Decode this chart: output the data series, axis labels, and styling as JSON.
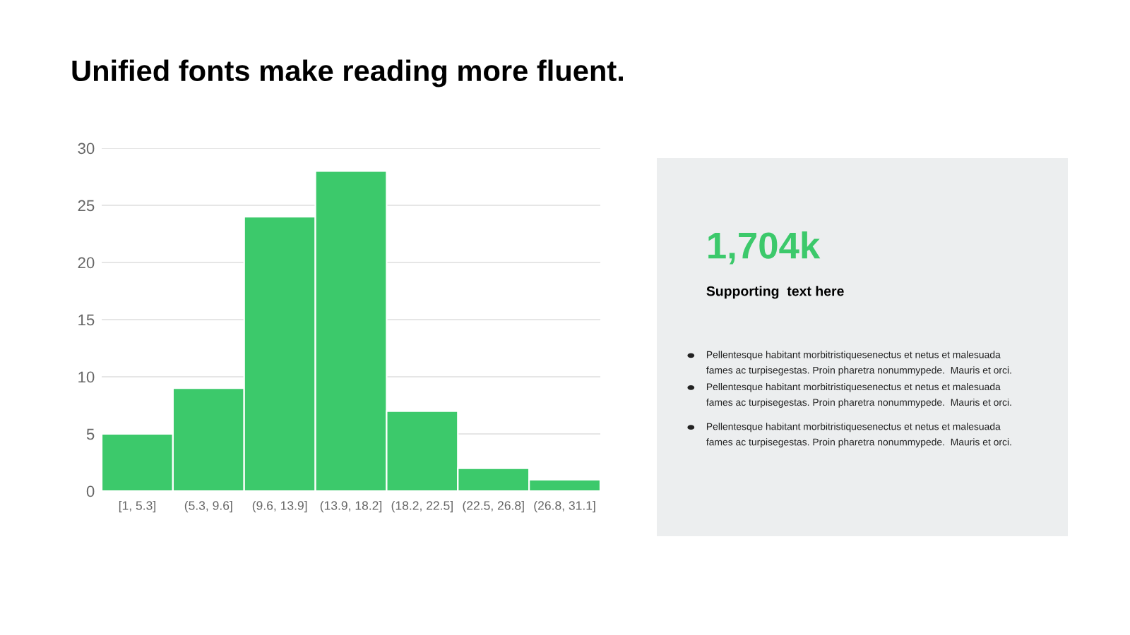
{
  "chart_data": {
    "type": "bar",
    "title": "Unified fonts make reading more fluent.",
    "categories": [
      "[1, 5.3]",
      "(5.3, 9.6]",
      "(9.6, 13.9]",
      "(13.9, 18.2]",
      "(18.2, 22.5]",
      "(22.5, 26.8]",
      "(26.8, 31.1]"
    ],
    "values": [
      5,
      9,
      24,
      28,
      7,
      2,
      1
    ],
    "color": "#3cc96b",
    "ylim": [
      0,
      30
    ],
    "yticks": [
      0,
      5,
      10,
      15,
      20,
      25,
      30
    ],
    "grid": "y",
    "annotations": [
      "1,704k",
      "Supporting  text here",
      "Pellentesque habitant morbitristiquesenectus et netus et malesuada\nfames ac turpisegestas. Proin pharetra nonummypede.  Mauris et orci.",
      "Pellentesque habitant morbitristiquesenectus et netus et malesuada\nfames ac turpisegestas. Proin pharetra nonummypede.  Mauris et orci.",
      "Pellentesque habitant morbitristiquesenectus et netus et malesuada\nfames ac turpisegestas. Proin pharetra nonummypede.  Mauris et orci."
    ]
  }
}
